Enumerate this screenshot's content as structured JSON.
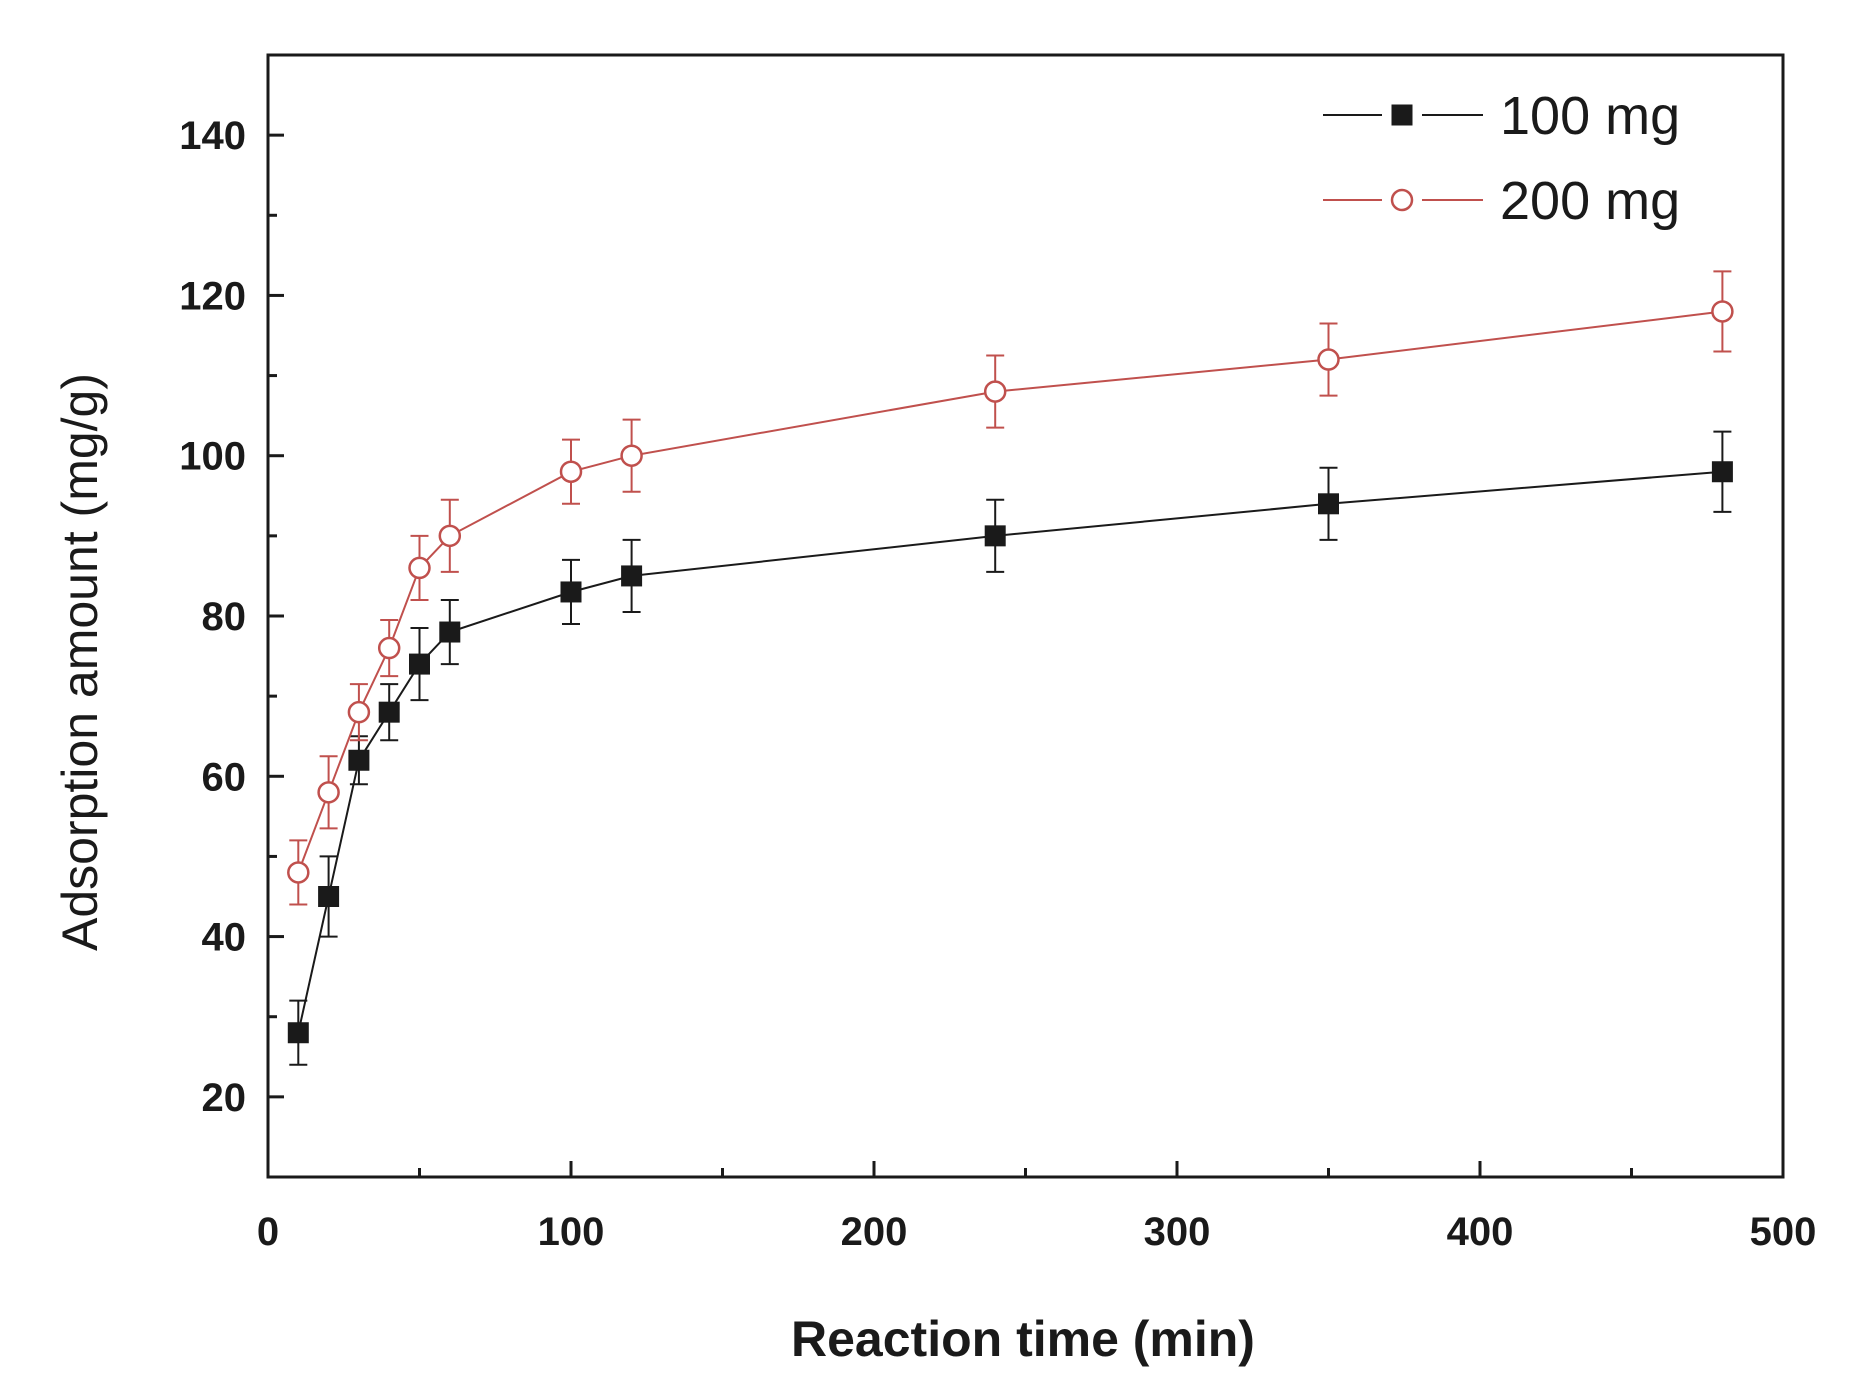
{
  "chart_data": {
    "type": "line",
    "title": "",
    "xlabel": "Reaction time (min)",
    "ylabel": "Adsorption amount (mg/g)",
    "xlim": [
      0,
      500
    ],
    "ylim": [
      10,
      150
    ],
    "x_ticks": [
      0,
      100,
      200,
      300,
      400,
      500
    ],
    "y_ticks": [
      20,
      40,
      60,
      80,
      100,
      120,
      140
    ],
    "x_minor_step": 50,
    "y_minor_step": 10,
    "grid": false,
    "legend_position": "top-right",
    "series": [
      {
        "name": "100 mg",
        "color": "#1a1a1a",
        "marker": "filled-square",
        "x": [
          10,
          20,
          30,
          40,
          50,
          60,
          100,
          120,
          240,
          350,
          480
        ],
        "values": [
          28,
          45,
          62,
          68,
          74,
          78,
          83,
          85,
          90,
          94,
          98
        ],
        "errors": [
          4,
          5,
          3,
          3.5,
          4.5,
          4,
          4,
          4.5,
          4.5,
          4.5,
          5
        ]
      },
      {
        "name": "200 mg",
        "color": "#c0504d",
        "marker": "open-circle",
        "x": [
          10,
          20,
          30,
          40,
          50,
          60,
          100,
          120,
          240,
          350,
          480
        ],
        "values": [
          48,
          58,
          68,
          76,
          86,
          90,
          98,
          100,
          108,
          112,
          118
        ],
        "errors": [
          4,
          4.5,
          3.5,
          3.5,
          4,
          4.5,
          4,
          4.5,
          4.5,
          4.5,
          5
        ]
      }
    ]
  }
}
